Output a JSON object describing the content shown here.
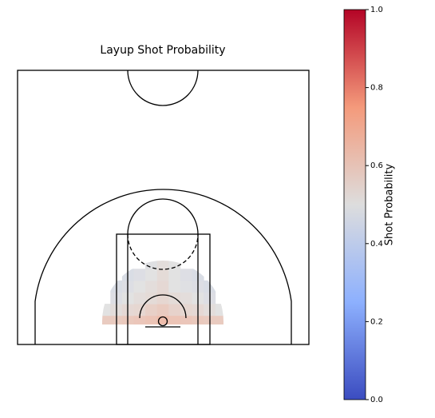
{
  "chart_data": {
    "type": "heatmap",
    "title": "Layup Shot Probability",
    "colormap": "coolwarm",
    "colorbar": {
      "label": "Shot Probability",
      "lim": [
        0,
        1
      ],
      "ticks": [
        {
          "value": 0,
          "label": "0.0"
        },
        0.2,
        0.4,
        0.6,
        0.8,
        {
          "value": 1,
          "label": "1.0"
        }
      ]
    },
    "x": [
      -10,
      -8,
      -6,
      -4,
      -2,
      0,
      2,
      4,
      6,
      8,
      10,
      -10,
      -8,
      -6,
      -4,
      -2,
      0,
      2,
      4,
      6,
      8,
      10,
      -8,
      -6,
      -4,
      -2,
      0,
      2,
      4,
      6,
      8,
      -8,
      -6,
      -4,
      -2,
      0,
      2,
      4,
      6,
      8,
      -6,
      -4,
      -2,
      0,
      2,
      4,
      6,
      -2,
      0,
      2
    ],
    "y": [
      0,
      0,
      0,
      0,
      0,
      0,
      0,
      0,
      0,
      0,
      0,
      2,
      2,
      2,
      2,
      2,
      2,
      2,
      2,
      2,
      2,
      2,
      4,
      4,
      4,
      4,
      4,
      4,
      4,
      4,
      4,
      6,
      6,
      6,
      6,
      6,
      6,
      6,
      6,
      6,
      8,
      8,
      8,
      8,
      8,
      8,
      8,
      10,
      10,
      10
    ],
    "values": [
      0.6,
      0.6,
      0.61,
      0.62,
      0.63,
      0.66,
      0.63,
      0.62,
      0.61,
      0.6,
      0.6,
      0.5,
      0.52,
      0.54,
      0.55,
      0.58,
      0.6,
      0.57,
      0.55,
      0.54,
      0.52,
      0.5,
      0.48,
      0.5,
      0.52,
      0.53,
      0.55,
      0.53,
      0.52,
      0.5,
      0.48,
      0.47,
      0.48,
      0.5,
      0.52,
      0.54,
      0.5,
      0.49,
      0.48,
      0.47,
      0.47,
      0.48,
      0.5,
      0.53,
      0.5,
      0.48,
      0.47,
      0.49,
      0.52,
      0.5
    ]
  }
}
